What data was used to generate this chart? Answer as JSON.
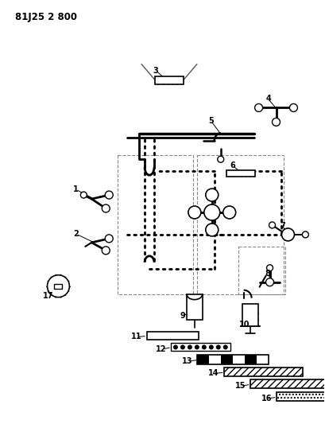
{
  "title": "81J25 2 800",
  "bg_color": "#ffffff",
  "fg_color": "#000000",
  "fig_width": 4.09,
  "fig_height": 5.33,
  "dpi": 100
}
